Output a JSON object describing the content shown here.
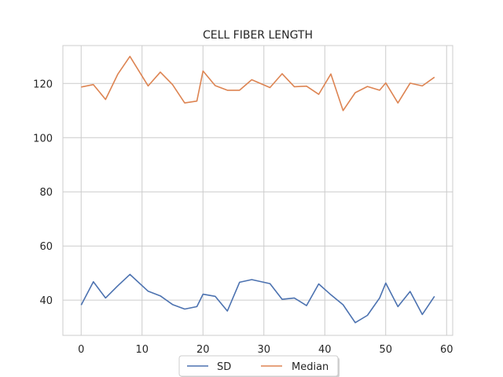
{
  "chart_data": {
    "type": "line",
    "title": "CELL FIBER LENGTH",
    "xlabel": "",
    "ylabel": "",
    "xlim": [
      -3,
      61
    ],
    "ylim": [
      27,
      134
    ],
    "xticks": [
      0,
      10,
      20,
      30,
      40,
      50,
      60
    ],
    "yticks": [
      40,
      60,
      80,
      100,
      120
    ],
    "grid": true,
    "legend_position": "bottom-center",
    "series": [
      {
        "name": "SD",
        "color": "#4c72b0",
        "x": [
          0,
          2,
          4,
          6,
          8,
          11,
          13,
          15,
          17,
          19,
          20,
          22,
          24,
          26,
          28,
          31,
          33,
          35,
          37,
          39,
          41,
          43,
          45,
          47,
          49,
          50,
          52,
          54,
          56,
          58
        ],
        "y": [
          38.2,
          46.8,
          40.8,
          45.3,
          49.5,
          43.3,
          41.6,
          38.4,
          36.7,
          37.6,
          42.2,
          41.4,
          36.0,
          46.6,
          47.6,
          46.1,
          40.3,
          40.8,
          38.0,
          46.0,
          42.0,
          38.3,
          31.7,
          34.4,
          40.8,
          46.3,
          37.6,
          43.2,
          34.7,
          41.4
        ]
      },
      {
        "name": "Median",
        "color": "#dd8452",
        "x": [
          0,
          2,
          4,
          6,
          8,
          11,
          13,
          15,
          17,
          19,
          20,
          22,
          24,
          26,
          28,
          31,
          33,
          35,
          37,
          39,
          41,
          43,
          45,
          47,
          49,
          50,
          52,
          54,
          56,
          58
        ],
        "y": [
          118.7,
          119.6,
          114.1,
          123.4,
          130.0,
          119.1,
          124.2,
          119.6,
          112.8,
          113.5,
          124.6,
          119.2,
          117.5,
          117.5,
          121.4,
          118.5,
          123.6,
          118.8,
          119.0,
          116.0,
          123.5,
          110.0,
          116.6,
          118.9,
          117.5,
          120.2,
          112.8,
          120.1,
          119.1,
          122.3
        ]
      }
    ]
  }
}
